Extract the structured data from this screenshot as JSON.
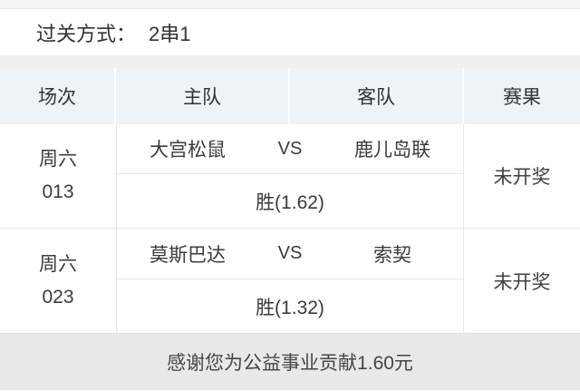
{
  "parlay": {
    "label": "过关方式：",
    "value": "2串1"
  },
  "table": {
    "headers": [
      "场次",
      "主队",
      "客队",
      "赛果"
    ],
    "rows": [
      {
        "day": "周六",
        "number": "013",
        "home": "大宫松鼠",
        "vs": "VS",
        "away": "鹿儿岛联",
        "pick": "胜(1.62)",
        "result": "未开奖"
      },
      {
        "day": "周六",
        "number": "023",
        "home": "莫斯巴达",
        "vs": "VS",
        "away": "索契",
        "pick": "胜(1.32)",
        "result": "未开奖"
      }
    ]
  },
  "footer": {
    "message": "感谢您为公益事业贡献1.60元"
  },
  "colors": {
    "header_bg": "#edf3f7",
    "section_gap_bg": "#f0f0f0",
    "footer_bg": "#e9e9e9",
    "top_strip_bg": "#f5f5f5",
    "border": "#e6e8ea",
    "text": "#333333"
  }
}
